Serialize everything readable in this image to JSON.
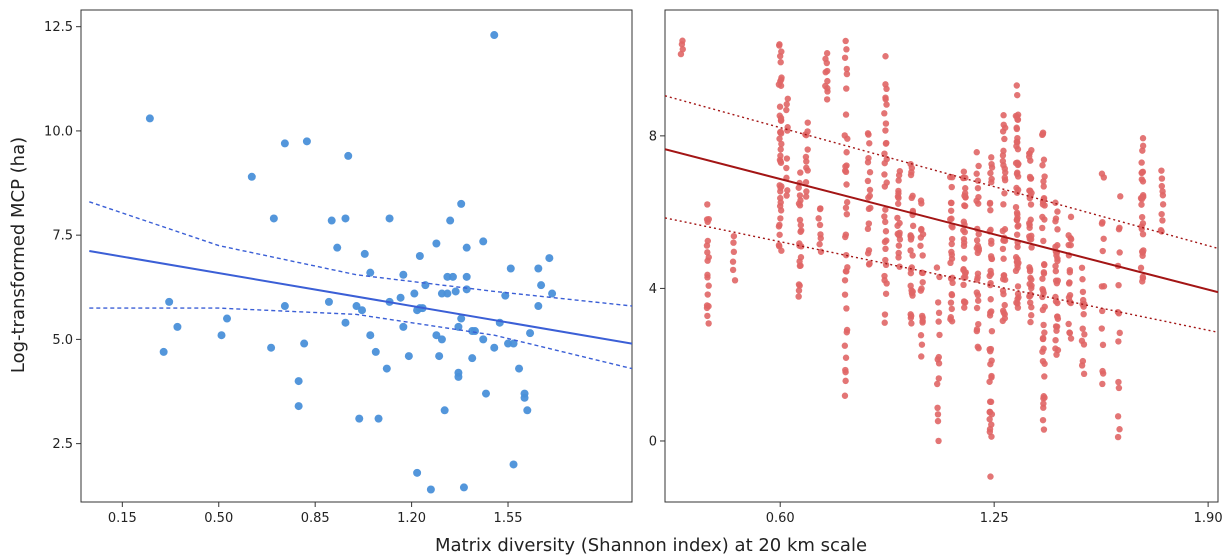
{
  "xlabel": "Matrix diversity (Shannon index) at 20 km scale",
  "ylabel": "Log-transformed MCP (ha)",
  "chart_data": [
    {
      "type": "scatter",
      "panel": "left",
      "xlim": [
        0.0,
        2.0
      ],
      "ylim": [
        1.1,
        12.9
      ],
      "xticks": [
        "0.15",
        "0.50",
        "0.85",
        "1.20",
        "1.55"
      ],
      "yticks": [
        "2.5",
        "5.0",
        "7.5",
        "10.0",
        "12.5"
      ],
      "grid": false,
      "colors": {
        "point": "#4a90d9",
        "line": "#3b5fd6"
      },
      "points": [
        [
          0.25,
          10.3
        ],
        [
          0.3,
          4.7
        ],
        [
          0.32,
          5.9
        ],
        [
          0.35,
          5.3
        ],
        [
          0.51,
          5.1
        ],
        [
          0.53,
          5.5
        ],
        [
          0.62,
          8.9
        ],
        [
          0.69,
          4.8
        ],
        [
          0.7,
          7.9
        ],
        [
          0.74,
          5.8
        ],
        [
          0.74,
          9.7
        ],
        [
          0.79,
          4.0
        ],
        [
          0.79,
          3.4
        ],
        [
          0.81,
          4.9
        ],
        [
          0.82,
          9.75
        ],
        [
          0.9,
          5.9
        ],
        [
          0.91,
          7.85
        ],
        [
          0.93,
          7.2
        ],
        [
          0.96,
          7.9
        ],
        [
          0.96,
          5.4
        ],
        [
          0.97,
          9.4
        ],
        [
          1.0,
          5.8
        ],
        [
          1.01,
          3.1
        ],
        [
          1.02,
          5.7
        ],
        [
          1.03,
          7.05
        ],
        [
          1.05,
          5.1
        ],
        [
          1.05,
          6.6
        ],
        [
          1.07,
          4.7
        ],
        [
          1.08,
          3.1
        ],
        [
          1.11,
          4.3
        ],
        [
          1.12,
          5.9
        ],
        [
          1.12,
          7.9
        ],
        [
          1.16,
          6.0
        ],
        [
          1.17,
          6.55
        ],
        [
          1.17,
          5.3
        ],
        [
          1.19,
          4.6
        ],
        [
          1.21,
          6.1
        ],
        [
          1.22,
          5.7
        ],
        [
          1.22,
          1.8
        ],
        [
          1.23,
          5.75
        ],
        [
          1.23,
          7.0
        ],
        [
          1.24,
          5.75
        ],
        [
          1.25,
          6.3
        ],
        [
          1.27,
          1.4
        ],
        [
          1.29,
          7.3
        ],
        [
          1.29,
          5.1
        ],
        [
          1.3,
          4.6
        ],
        [
          1.31,
          5.0
        ],
        [
          1.31,
          6.1
        ],
        [
          1.32,
          3.3
        ],
        [
          1.33,
          6.1
        ],
        [
          1.33,
          6.5
        ],
        [
          1.34,
          7.85
        ],
        [
          1.35,
          6.5
        ],
        [
          1.36,
          6.15
        ],
        [
          1.37,
          5.3
        ],
        [
          1.37,
          4.1
        ],
        [
          1.37,
          4.2
        ],
        [
          1.38,
          8.25
        ],
        [
          1.38,
          5.5
        ],
        [
          1.39,
          1.45
        ],
        [
          1.4,
          7.2
        ],
        [
          1.4,
          6.5
        ],
        [
          1.4,
          6.2
        ],
        [
          1.42,
          5.2
        ],
        [
          1.42,
          4.55
        ],
        [
          1.43,
          5.2
        ],
        [
          1.46,
          7.35
        ],
        [
          1.46,
          5.0
        ],
        [
          1.47,
          3.7
        ],
        [
          1.5,
          12.3
        ],
        [
          1.5,
          4.8
        ],
        [
          1.52,
          5.4
        ],
        [
          1.54,
          6.05
        ],
        [
          1.55,
          4.9
        ],
        [
          1.56,
          6.7
        ],
        [
          1.57,
          4.9
        ],
        [
          1.57,
          2.0
        ],
        [
          1.59,
          4.3
        ],
        [
          1.61,
          3.7
        ],
        [
          1.61,
          3.6
        ],
        [
          1.62,
          3.3
        ],
        [
          1.63,
          5.15
        ],
        [
          1.66,
          5.8
        ],
        [
          1.66,
          6.7
        ],
        [
          1.67,
          6.3
        ],
        [
          1.7,
          6.95
        ],
        [
          1.71,
          6.1
        ]
      ],
      "fit": {
        "x": [
          0.03,
          2.0
        ],
        "y": [
          7.12,
          4.9
        ]
      },
      "ci_upper": {
        "x": [
          0.03,
          0.5,
          1.0,
          1.5,
          2.0
        ],
        "y": [
          8.3,
          7.25,
          6.55,
          6.15,
          5.8
        ]
      },
      "ci_lower": {
        "x": [
          0.03,
          0.5,
          1.0,
          1.5,
          2.0
        ],
        "y": [
          5.75,
          5.75,
          5.6,
          5.1,
          4.3
        ]
      }
    },
    {
      "type": "scatter",
      "panel": "right",
      "xlim": [
        0.25,
        1.93
      ],
      "ylim": [
        -1.6,
        11.3
      ],
      "xticks": [
        "0.60",
        "1.25",
        "1.90"
      ],
      "yticks": [
        "0",
        "4",
        "8"
      ],
      "grid": false,
      "colors": {
        "point": "#e06666",
        "line": "#a31515"
      },
      "clusters": [
        {
          "x": 0.3,
          "n": 4,
          "ymin": 10.1,
          "ymax": 10.55
        },
        {
          "x": 0.38,
          "n": 18,
          "ymin": 2.7,
          "ymax": 6.3
        },
        {
          "x": 0.46,
          "n": 6,
          "ymin": 4.1,
          "ymax": 5.5
        },
        {
          "x": 0.6,
          "n": 40,
          "ymin": 4.6,
          "ymax": 10.8
        },
        {
          "x": 0.62,
          "n": 10,
          "ymin": 6.1,
          "ymax": 9.4
        },
        {
          "x": 0.66,
          "n": 22,
          "ymin": 3.6,
          "ymax": 7.2
        },
        {
          "x": 0.68,
          "n": 12,
          "ymin": 6.2,
          "ymax": 8.6
        },
        {
          "x": 0.72,
          "n": 8,
          "ymin": 4.8,
          "ymax": 6.3
        },
        {
          "x": 0.74,
          "n": 10,
          "ymin": 8.9,
          "ymax": 10.2
        },
        {
          "x": 0.8,
          "n": 35,
          "ymin": 0.7,
          "ymax": 10.8
        },
        {
          "x": 0.87,
          "n": 18,
          "ymin": 4.2,
          "ymax": 8.5
        },
        {
          "x": 0.92,
          "n": 32,
          "ymin": 3.0,
          "ymax": 10.3
        },
        {
          "x": 0.96,
          "n": 20,
          "ymin": 4.4,
          "ymax": 7.2
        },
        {
          "x": 1.0,
          "n": 28,
          "ymin": 2.5,
          "ymax": 7.6
        },
        {
          "x": 1.03,
          "n": 20,
          "ymin": 2.0,
          "ymax": 6.5
        },
        {
          "x": 1.08,
          "n": 15,
          "ymin": -0.2,
          "ymax": 4.6
        },
        {
          "x": 1.12,
          "n": 26,
          "ymin": 2.5,
          "ymax": 7.3
        },
        {
          "x": 1.16,
          "n": 30,
          "ymin": 3.0,
          "ymax": 7.5
        },
        {
          "x": 1.2,
          "n": 28,
          "ymin": 2.2,
          "ymax": 7.8
        },
        {
          "x": 1.24,
          "n": 45,
          "ymin": -1.0,
          "ymax": 8.0
        },
        {
          "x": 1.28,
          "n": 35,
          "ymin": 2.5,
          "ymax": 8.8
        },
        {
          "x": 1.32,
          "n": 50,
          "ymin": 3.0,
          "ymax": 9.5
        },
        {
          "x": 1.36,
          "n": 40,
          "ymin": 2.8,
          "ymax": 8.0
        },
        {
          "x": 1.4,
          "n": 45,
          "ymin": -0.3,
          "ymax": 8.7
        },
        {
          "x": 1.44,
          "n": 30,
          "ymin": 1.8,
          "ymax": 6.5
        },
        {
          "x": 1.48,
          "n": 20,
          "ymin": 2.5,
          "ymax": 6.0
        },
        {
          "x": 1.52,
          "n": 15,
          "ymin": 1.5,
          "ymax": 4.7
        },
        {
          "x": 1.58,
          "n": 14,
          "ymin": 0.8,
          "ymax": 7.5
        },
        {
          "x": 1.63,
          "n": 15,
          "ymin": -0.7,
          "ymax": 6.6
        },
        {
          "x": 1.7,
          "n": 28,
          "ymin": 3.8,
          "ymax": 8.2
        },
        {
          "x": 1.76,
          "n": 10,
          "ymin": 5.2,
          "ymax": 7.2
        }
      ],
      "fit": {
        "x": [
          0.25,
          1.93
        ],
        "y": [
          7.65,
          3.9
        ]
      },
      "ci_upper": {
        "x": [
          0.25,
          1.93
        ],
        "y": [
          9.05,
          5.05
        ]
      },
      "ci_lower": {
        "x": [
          0.25,
          1.93
        ],
        "y": [
          5.85,
          2.85
        ]
      }
    }
  ]
}
